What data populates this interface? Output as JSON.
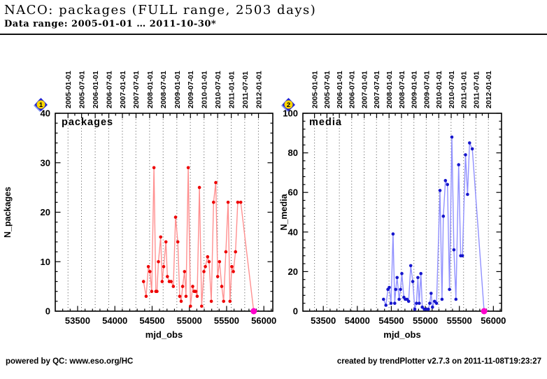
{
  "header": {
    "title": "NACO: packages (FULL range, 2503 days)",
    "subtitle": "Data range: 2005-01-01 … 2011-10-30*"
  },
  "footer": {
    "left": "powered by QC: www.eso.org/HC",
    "right": "created by trendPlotter v2.7.3 on 2011-11-08T19:23:27"
  },
  "date_axis": {
    "labels": [
      "2005-01-01",
      "2005-07-01",
      "2006-01-01",
      "2006-07-01",
      "2007-01-01",
      "2007-07-01",
      "2008-01-01",
      "2008-07-01",
      "2009-01-01",
      "2009-07-01",
      "2010-01-01",
      "2010-07-01",
      "2011-01-01",
      "2011-07-01",
      "2012-01-01"
    ],
    "mjd": [
      53371,
      53552,
      53736,
      53917,
      54101,
      54282,
      54466,
      54648,
      54832,
      55013,
      55197,
      55378,
      55562,
      55743,
      55927
    ]
  },
  "x_axis": {
    "label": "mjd_obs",
    "lim": [
      53200,
      56120
    ],
    "tick_labels": [
      53500,
      54000,
      54500,
      55000,
      55500,
      56000
    ],
    "minor_step": 100,
    "major_step": 500
  },
  "chart_data": [
    {
      "type": "line",
      "badge": "1",
      "title": "packages",
      "xlabel": "mjd_obs",
      "ylabel": "N_packages",
      "ylim": [
        0,
        40
      ],
      "yticks": {
        "major": 10,
        "minor": 2
      },
      "grid": "vertical-dotted-at-dates",
      "legend_position": "none",
      "marker_color": "#ee0000",
      "line_color": "#ff9090",
      "x": [
        54385,
        54420,
        54450,
        54470,
        54495,
        54525,
        54550,
        54565,
        54585,
        54615,
        54635,
        54655,
        54685,
        54705,
        54730,
        54755,
        54785,
        54815,
        54845,
        54870,
        54890,
        54910,
        54935,
        54955,
        54985,
        55015,
        55045,
        55065,
        55085,
        55105,
        55135,
        55165,
        55195,
        55215,
        55245,
        55265,
        55295,
        55325,
        55355,
        55380,
        55405,
        55435,
        55460,
        55490,
        55520,
        55545,
        55570,
        55590,
        55620,
        55650,
        55690,
        55864
      ],
      "y": [
        6,
        3,
        9,
        8,
        4,
        29,
        4,
        4,
        10,
        15,
        6,
        9,
        14,
        7,
        6,
        6,
        5,
        19,
        14,
        3,
        2,
        5,
        8,
        3,
        29,
        1,
        5,
        4,
        4,
        3,
        25,
        1,
        8,
        9,
        11,
        10,
        2,
        22,
        26,
        7,
        10,
        5,
        2,
        12,
        22,
        2,
        9,
        8,
        12,
        22,
        22,
        0
      ],
      "end_marker": {
        "mjd": 55864,
        "value": 0,
        "color": "#ff00cc"
      }
    },
    {
      "type": "line",
      "badge": "2",
      "title": "media",
      "xlabel": "mjd_obs",
      "ylabel": "N_media",
      "ylim": [
        0,
        100
      ],
      "yticks": {
        "major": 20,
        "minor": 4
      },
      "grid": "vertical-dotted-at-dates",
      "legend_position": "none",
      "marker_color": "#1515cc",
      "line_color": "#9090ff",
      "x": [
        54385,
        54420,
        54450,
        54470,
        54495,
        54525,
        54550,
        54565,
        54585,
        54615,
        54635,
        54655,
        54685,
        54705,
        54730,
        54755,
        54785,
        54815,
        54845,
        54870,
        54890,
        54910,
        54935,
        54955,
        54985,
        55015,
        55045,
        55065,
        55085,
        55105,
        55135,
        55165,
        55215,
        55245,
        55265,
        55295,
        55325,
        55355,
        55390,
        55420,
        55450,
        55490,
        55520,
        55545,
        55590,
        55620,
        55650,
        55690,
        55864
      ],
      "y": [
        6,
        3,
        11,
        12,
        4,
        39,
        4,
        11,
        17,
        6,
        11,
        19,
        7,
        6,
        6,
        5,
        23,
        15,
        1,
        4,
        17,
        4,
        19,
        2,
        1,
        1,
        1,
        4,
        9,
        2,
        5,
        4,
        61,
        6,
        48,
        66,
        64,
        11,
        88,
        31,
        6,
        74,
        28,
        28,
        79,
        59,
        85,
        82,
        0
      ],
      "end_marker": {
        "mjd": 55864,
        "value": 0,
        "color": "#ff00cc"
      }
    }
  ],
  "colors": {
    "series_red": "#ee0000",
    "series_blue": "#1515cc",
    "end_marker_magenta": "#ff00cc",
    "badge_diamond": "#1f1fd0",
    "badge_circle": "#ffd700"
  }
}
